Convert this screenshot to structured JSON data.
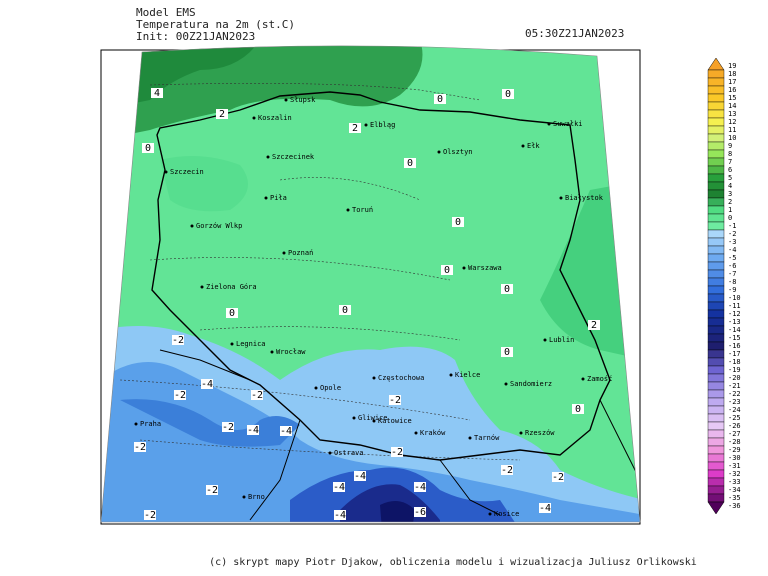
{
  "header": {
    "model": "Model EMS",
    "variable": "Temperatura na 2m (st.C)",
    "init": "Init: 00Z21JAN2023",
    "valid": "05:30Z21JAN2023"
  },
  "map": {
    "cities": [
      "Słupsk",
      "Koszalin",
      "Elbląg",
      "Olsztyn",
      "Suwałki",
      "Ełk",
      "Szczecinek",
      "Szczecin",
      "Piła",
      "Toruń",
      "Białystok",
      "Gorzów Wlkp",
      "Poznań",
      "Warszawa",
      "Zielona Góra",
      "Legnica",
      "Wrocław",
      "Lublin",
      "Zamość",
      "Opole",
      "Częstochowa",
      "Kielce",
      "Sandomierz",
      "Gliwice",
      "Katowice",
      "Kraków",
      "Tarnów",
      "Rzeszów",
      "Ostrava",
      "Praha",
      "Brno",
      "Kosice"
    ],
    "contour_labels": [
      "4",
      "2",
      "2",
      "0",
      "0",
      "0",
      "0",
      "0",
      "0",
      "0",
      "0",
      "0",
      "2",
      "0",
      "-2",
      "-4",
      "-2",
      "-2",
      "-2",
      "-4",
      "-4",
      "-2",
      "-2",
      "-2",
      "-2",
      "-4",
      "-4",
      "-4",
      "-2",
      "-2",
      "0",
      "-2",
      "-4",
      "-6",
      "-4"
    ]
  },
  "legend": {
    "labels": [
      19,
      18,
      17,
      16,
      15,
      14,
      13,
      12,
      11,
      10,
      9,
      8,
      7,
      6,
      5,
      4,
      3,
      2,
      1,
      0,
      -1,
      -2,
      -3,
      -4,
      -5,
      -6,
      -7,
      -8,
      -9,
      -10,
      -11,
      -12,
      -13,
      -14,
      -15,
      -16,
      -17,
      -18,
      -19,
      -20,
      -21,
      -22,
      -23,
      -24,
      -25,
      -26,
      -27,
      -28,
      -29,
      -30,
      -31,
      -32,
      -33,
      -34,
      -35,
      -36
    ]
  },
  "footer": "(c) skrypt mapy Piotr Djakow, obliczenia modelu i wizualizacja Juliusz Orlikowski"
}
